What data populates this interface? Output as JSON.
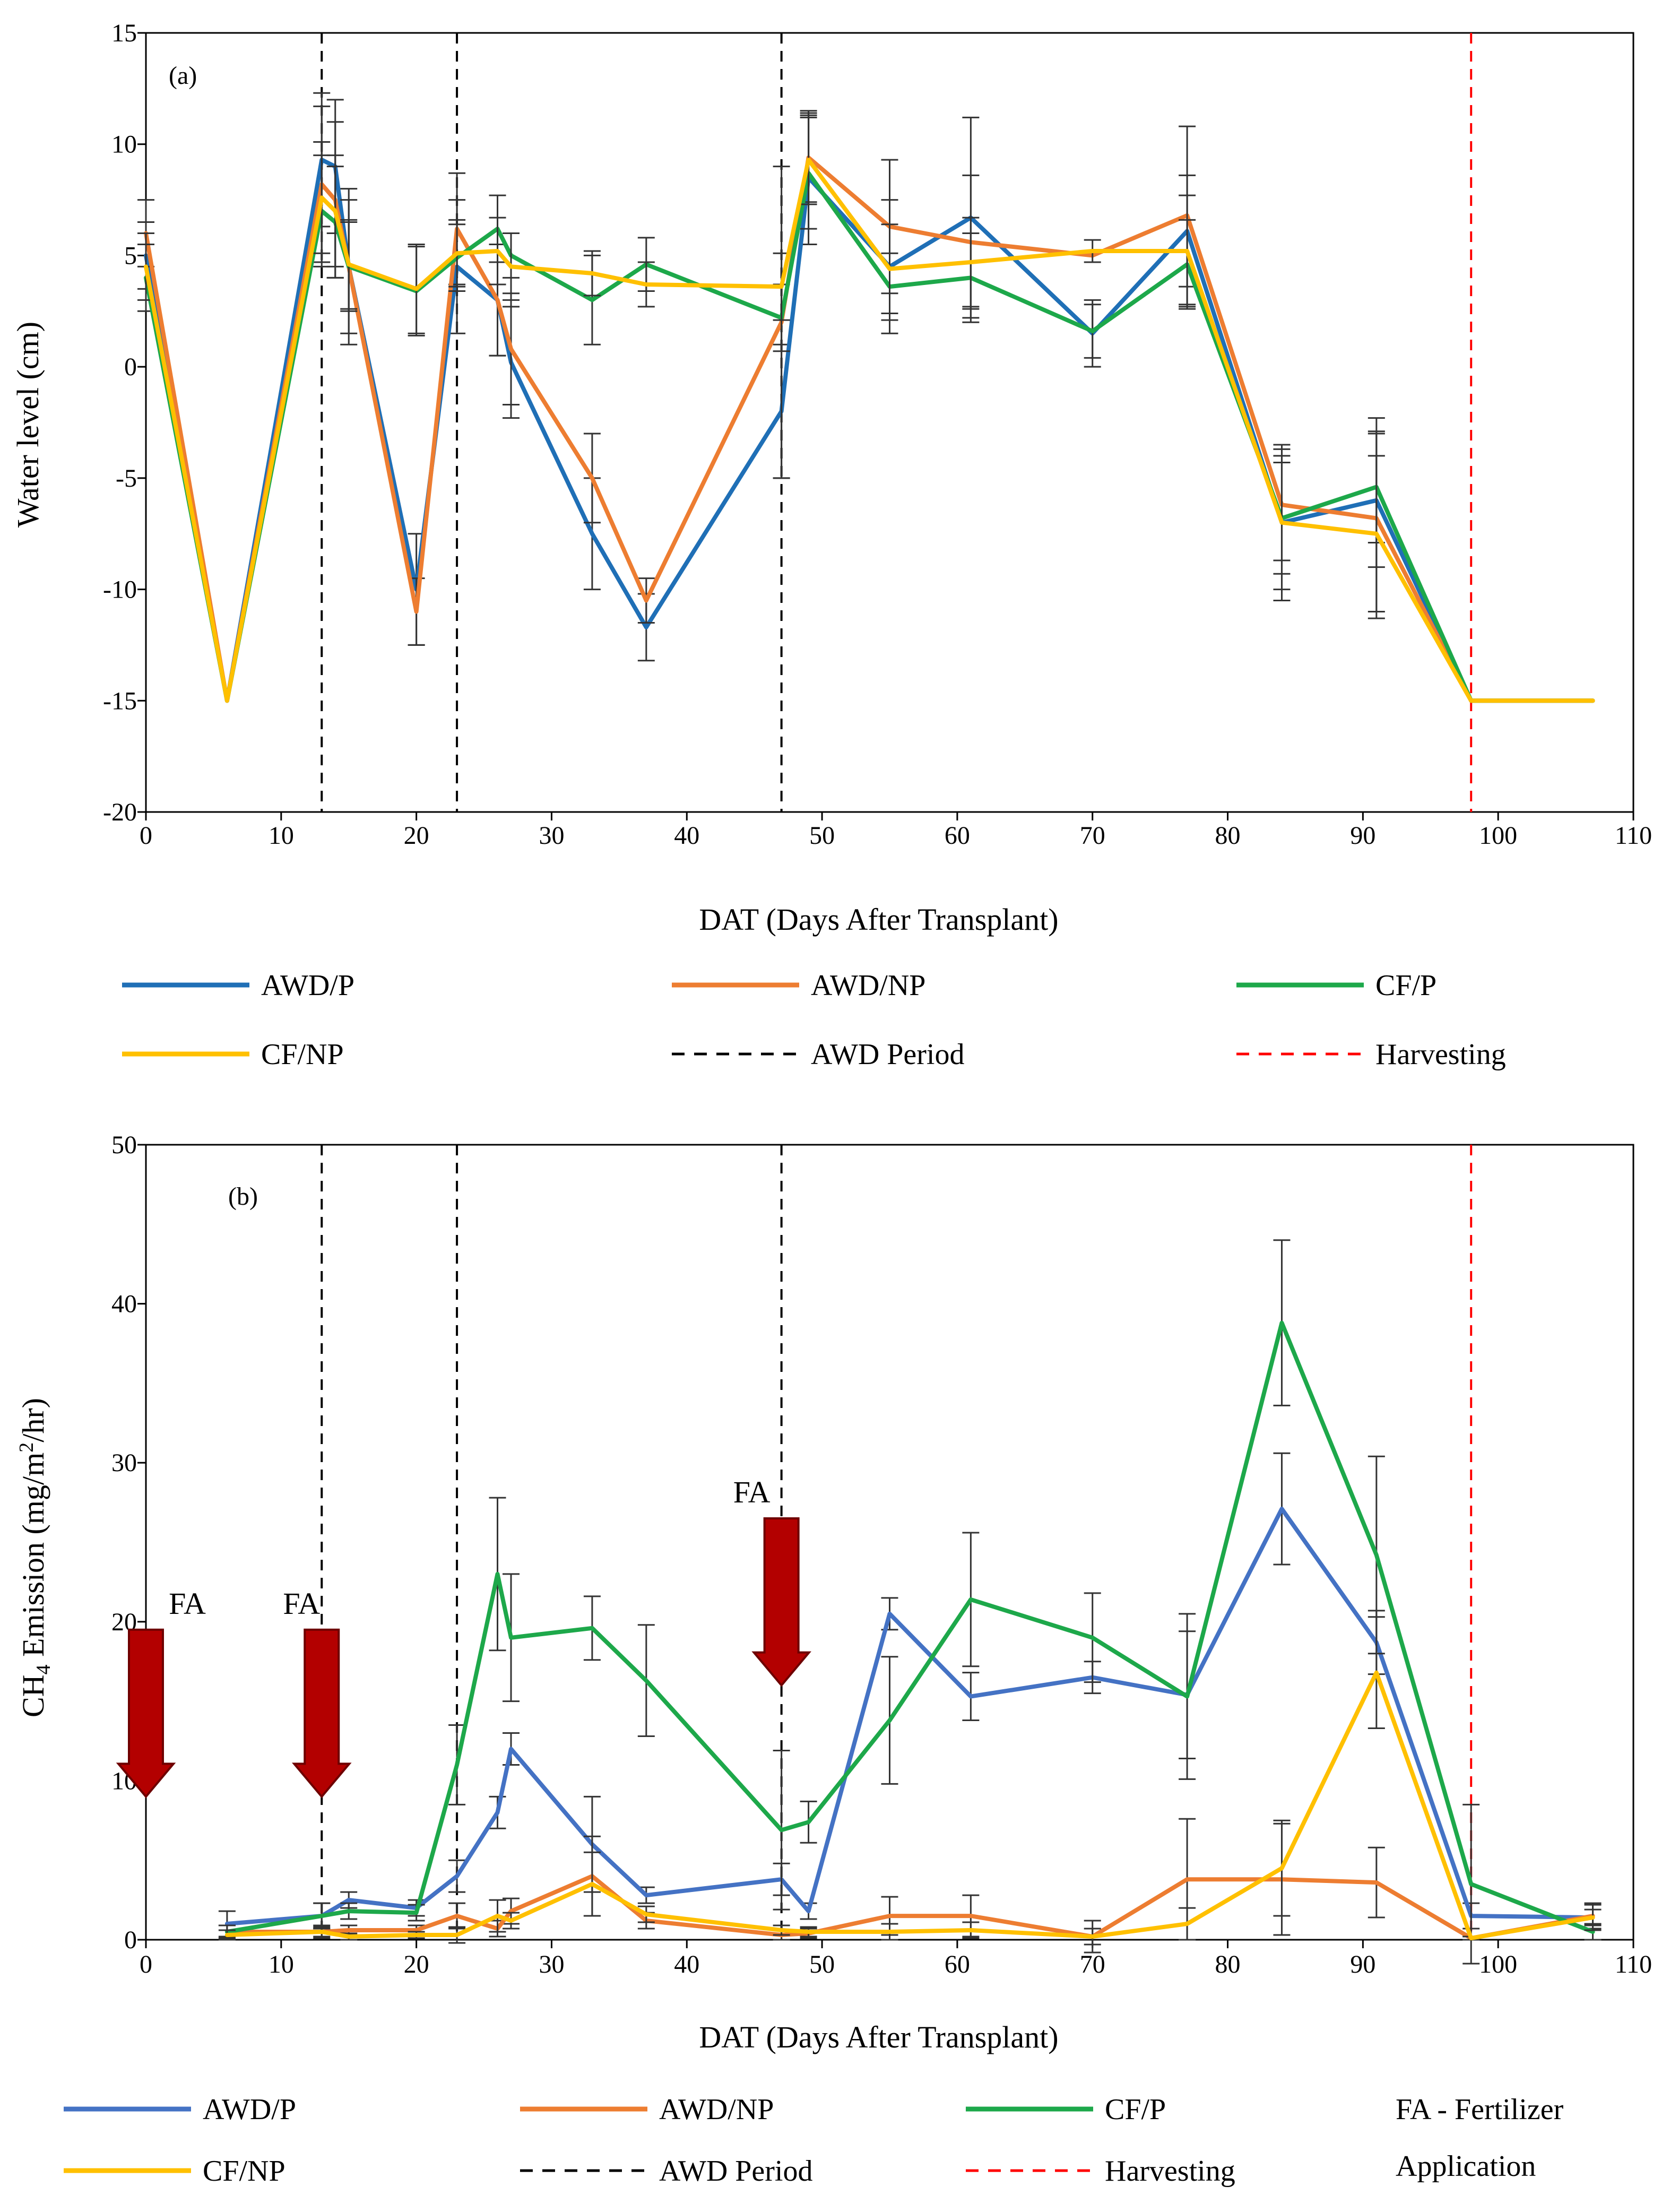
{
  "colors": {
    "awd_p_a": "#1F6FB6",
    "awd_p_b": "#4472C4",
    "awd_np": "#ED7D31",
    "cf_p": "#1DA84A",
    "cf_np": "#FFC000",
    "awd_period": "#000000",
    "harvest": "#FF0000",
    "fa_arrow": "#B30000",
    "fa_arrow_edge": "#6E0000"
  },
  "chart_data": [
    {
      "type": "line",
      "panel_label": "(a)",
      "title": "",
      "xlabel": "DAT (Days After Transplant)",
      "ylabel": "Water level (cm)",
      "xlim": [
        0,
        110
      ],
      "ylim": [
        -20,
        15
      ],
      "x_ticks": [
        0,
        10,
        20,
        30,
        40,
        50,
        60,
        70,
        80,
        90,
        100,
        110
      ],
      "y_ticks": [
        -20,
        -15,
        -10,
        -5,
        0,
        5,
        10,
        15
      ],
      "x_tick_labels": [
        "0",
        "10",
        "20",
        "30",
        "40",
        "50",
        "60",
        "70",
        "80",
        "90",
        "100",
        "110"
      ],
      "y_tick_labels": [
        "-20",
        "-15",
        "-10",
        "-5",
        "0",
        "5",
        "10",
        "15"
      ],
      "awd_period_lines": [
        13,
        23,
        47
      ],
      "harvest_line": 98,
      "series": [
        {
          "name": "AWD/P",
          "color_key": "awd_p_a",
          "x": [
            0,
            6,
            13,
            14,
            15,
            20,
            23,
            26,
            27,
            33,
            37,
            47,
            49,
            55,
            61,
            70,
            77,
            84,
            91,
            98,
            107
          ],
          "y": [
            5,
            -15,
            9.3,
            9.0,
            4.5,
            -10,
            4.5,
            3.0,
            0.2,
            -7.5,
            -11.7,
            -2.0,
            8.5,
            4.5,
            6.7,
            1.5,
            6.1,
            -7.0,
            -6.0,
            -15,
            -15
          ],
          "err": [
            1.5,
            0,
            3.0,
            3.0,
            3.5,
            2.5,
            3.0,
            2.5,
            2.5,
            2.5,
            1.5,
            3.0,
            3.0,
            3.0,
            4.5,
            1.5,
            2.5,
            3.5,
            3.0,
            0,
            0
          ]
        },
        {
          "name": "AWD/NP",
          "color_key": "awd_np",
          "x": [
            0,
            6,
            13,
            14,
            15,
            20,
            23,
            26,
            27,
            33,
            37,
            47,
            49,
            55,
            61,
            70,
            77,
            84,
            91,
            98,
            107
          ],
          "y": [
            6,
            -15,
            8.2,
            7.5,
            4.5,
            -11.0,
            6.2,
            3.0,
            0.8,
            -5.0,
            -10.5,
            2.0,
            9.4,
            6.3,
            5.6,
            5.0,
            6.8,
            -6.2,
            -6.8,
            -15,
            -15
          ],
          "err": [
            1.5,
            0,
            3.5,
            3.5,
            3.0,
            1.5,
            2.5,
            2.5,
            2.5,
            2.0,
            1.0,
            7.0,
            2.0,
            3.0,
            3.0,
            0,
            4.0,
            2.5,
            4.5,
            0,
            0
          ]
        },
        {
          "name": "CF/P",
          "color_key": "cf_p",
          "x": [
            0,
            6,
            13,
            14,
            15,
            20,
            23,
            26,
            27,
            33,
            37,
            47,
            49,
            55,
            61,
            70,
            77,
            84,
            91,
            98,
            107
          ],
          "y": [
            4,
            -15,
            7.0,
            6.5,
            4.5,
            3.4,
            4.9,
            6.2,
            5.0,
            3.0,
            4.6,
            2.2,
            8.7,
            3.6,
            4.0,
            1.6,
            4.6,
            -6.8,
            -5.4,
            -15,
            -15
          ],
          "err": [
            1.5,
            0,
            2.5,
            2.5,
            2.0,
            2.0,
            1.5,
            1.5,
            1.0,
            2.0,
            1.2,
            1.5,
            2.5,
            1.5,
            2.0,
            1.2,
            2.0,
            2.5,
            2.5,
            0,
            0
          ]
        },
        {
          "name": "CF/NP",
          "color_key": "cf_np",
          "x": [
            0,
            6,
            13,
            14,
            15,
            20,
            23,
            26,
            27,
            33,
            37,
            47,
            49,
            55,
            61,
            70,
            77,
            84,
            91,
            98,
            107
          ],
          "y": [
            4.5,
            -15,
            7.6,
            7.0,
            4.6,
            3.5,
            5.1,
            5.2,
            4.5,
            4.2,
            3.7,
            3.6,
            9.3,
            4.4,
            4.7,
            5.2,
            5.2,
            -7.0,
            -7.5,
            -15,
            -15
          ],
          "err": [
            1.5,
            0,
            2.5,
            2.5,
            2.0,
            2.0,
            1.5,
            1.5,
            1.5,
            1.0,
            1.0,
            1.5,
            2.0,
            2.0,
            2.0,
            0.5,
            2.5,
            3.0,
            3.5,
            0,
            0
          ]
        }
      ]
    },
    {
      "type": "line",
      "panel_label": "(b)",
      "title": "",
      "xlabel": "DAT (Days After Transplant)",
      "ylabel_main": "CH",
      "ylabel_sub": "4",
      "ylabel_mid": " Emission (mg/m",
      "ylabel_sup": "2",
      "ylabel_end": "/hr)",
      "xlim": [
        0,
        110
      ],
      "ylim": [
        0,
        50
      ],
      "x_ticks": [
        0,
        10,
        20,
        30,
        40,
        50,
        60,
        70,
        80,
        90,
        100,
        110
      ],
      "y_ticks": [
        0,
        10,
        20,
        30,
        40,
        50
      ],
      "x_tick_labels": [
        "0",
        "10",
        "20",
        "30",
        "40",
        "50",
        "60",
        "70",
        "80",
        "90",
        "100",
        "110"
      ],
      "y_tick_labels": [
        "0",
        "10",
        "20",
        "30",
        "40",
        "50"
      ],
      "awd_period_lines": [
        13,
        23,
        47
      ],
      "harvest_line": 98,
      "fertilizer_application": [
        {
          "day": 0,
          "label": "FA",
          "top": 19.5,
          "bottom": 9
        },
        {
          "day": 13,
          "label": "FA",
          "top": 19.5,
          "bottom": 9
        },
        {
          "day": 47,
          "label": "FA",
          "top": 26.5,
          "bottom": 16
        }
      ],
      "series": [
        {
          "name": "AWD/P",
          "color_key": "awd_p_b",
          "x": [
            6,
            13,
            15,
            20,
            23,
            26,
            27,
            33,
            37,
            47,
            49,
            55,
            61,
            70,
            77,
            84,
            91,
            98,
            107
          ],
          "y": [
            1.0,
            1.5,
            2.5,
            2.0,
            4.0,
            8.0,
            12.0,
            6.0,
            2.8,
            3.8,
            1.8,
            20.5,
            15.3,
            16.5,
            15.4,
            27.1,
            18.7,
            1.5,
            1.4
          ],
          "err": [
            0.8,
            0.8,
            0.5,
            0.5,
            1.0,
            1.0,
            1.0,
            3.0,
            0.5,
            1.0,
            0.5,
            1.0,
            1.5,
            1.0,
            4.0,
            3.5,
            2.0,
            0.8,
            0.5
          ]
        },
        {
          "name": "AWD/NP",
          "color_key": "awd_np",
          "x": [
            6,
            13,
            15,
            20,
            23,
            26,
            27,
            33,
            37,
            47,
            49,
            55,
            61,
            70,
            77,
            84,
            91,
            98,
            107
          ],
          "y": [
            0.5,
            0.5,
            0.6,
            0.6,
            1.5,
            0.7,
            1.8,
            4.0,
            1.2,
            0.3,
            0.4,
            1.5,
            1.5,
            0.2,
            3.8,
            3.8,
            3.6,
            0.1,
            1.5
          ],
          "err": [
            0.4,
            0.4,
            0.3,
            0.3,
            0.8,
            0.5,
            0.8,
            2.5,
            0.5,
            0.3,
            0.3,
            1.2,
            1.3,
            1.0,
            3.8,
            3.5,
            2.2,
            0.1,
            0.8
          ]
        },
        {
          "name": "CF/P",
          "color_key": "cf_p",
          "x": [
            6,
            13,
            15,
            20,
            23,
            26,
            27,
            33,
            37,
            47,
            49,
            55,
            61,
            70,
            77,
            84,
            91,
            98,
            107
          ],
          "y": [
            0.5,
            1.5,
            1.8,
            1.7,
            11.0,
            23.0,
            19.0,
            19.6,
            16.3,
            6.9,
            7.4,
            13.8,
            21.4,
            19.0,
            15.3,
            38.8,
            24.2,
            3.5,
            0.5
          ],
          "err": [
            0.4,
            0.8,
            0.5,
            0.5,
            2.5,
            4.8,
            4.0,
            2.0,
            3.5,
            5.0,
            1.3,
            4.0,
            4.2,
            2.8,
            5.2,
            5.2,
            6.2,
            5.0,
            0.5
          ]
        },
        {
          "name": "CF/NP",
          "color_key": "cf_np",
          "x": [
            6,
            13,
            15,
            20,
            23,
            26,
            27,
            33,
            37,
            47,
            49,
            55,
            61,
            70,
            77,
            84,
            91,
            98,
            107
          ],
          "y": [
            0.3,
            0.5,
            0.2,
            0.3,
            0.3,
            1.5,
            1.2,
            3.5,
            1.6,
            0.6,
            0.5,
            0.5,
            0.6,
            0.2,
            1.0,
            4.5,
            16.8,
            0.1,
            1.4
          ],
          "err": [
            0.3,
            0.3,
            0.2,
            0.2,
            0.5,
            1.0,
            0.5,
            2.0,
            0.5,
            0.3,
            0.3,
            0.5,
            0.5,
            0.5,
            1.0,
            3.0,
            3.5,
            0.1,
            0.8
          ]
        }
      ]
    }
  ],
  "legend_a": {
    "items": [
      {
        "label": "AWD/P",
        "color_key": "awd_p_a",
        "style": "solid"
      },
      {
        "label": "AWD/NP",
        "color_key": "awd_np",
        "style": "solid"
      },
      {
        "label": "CF/P",
        "color_key": "cf_p",
        "style": "solid"
      },
      {
        "label": "CF/NP",
        "color_key": "cf_np",
        "style": "solid"
      },
      {
        "label": "AWD Period",
        "color_key": "awd_period",
        "style": "dashed"
      },
      {
        "label": "Harvesting",
        "color_key": "harvest",
        "style": "dashed"
      }
    ]
  },
  "legend_b": {
    "items": [
      {
        "label": "AWD/P",
        "color_key": "awd_p_b",
        "style": "solid"
      },
      {
        "label": "AWD/NP",
        "color_key": "awd_np",
        "style": "solid"
      },
      {
        "label": "CF/P",
        "color_key": "cf_p",
        "style": "solid"
      },
      {
        "label": "CF/NP",
        "color_key": "cf_np",
        "style": "solid"
      },
      {
        "label": "AWD Period",
        "color_key": "awd_period",
        "style": "dashed"
      },
      {
        "label": "Harvesting",
        "color_key": "harvest",
        "style": "dashed"
      }
    ],
    "note_line1": "FA - Fertilizer",
    "note_line2": "Application"
  }
}
